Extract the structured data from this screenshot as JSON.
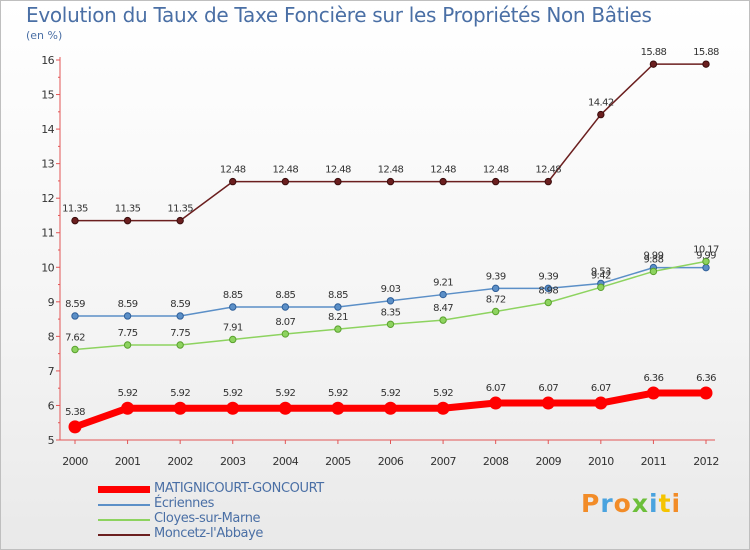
{
  "header": {
    "title": "Evolution du Taux de Taxe Foncière sur les Propriétés Non Bâties",
    "subtitle": "(en %)"
  },
  "brand": {
    "logo_text": "Proxiti"
  },
  "chart_data": {
    "type": "line",
    "title": "Evolution du Taux de Taxe Foncière sur les Propriétés Non Bâties",
    "ylabel": "(en %)",
    "xlabel": "",
    "x": [
      "2000",
      "2001",
      "2002",
      "2003",
      "2004",
      "2005",
      "2006",
      "2007",
      "2008",
      "2009",
      "2010",
      "2011",
      "2012"
    ],
    "ylim": [
      5,
      16
    ],
    "yticks": [
      5,
      6,
      7,
      8,
      9,
      10,
      11,
      12,
      13,
      14,
      15,
      16
    ],
    "legend_position": "bottom-left",
    "series": [
      {
        "name": "Moncetz-l'Abbaye",
        "color": "#6b1f1f",
        "values": [
          11.35,
          11.35,
          11.35,
          12.48,
          12.48,
          12.48,
          12.48,
          12.48,
          12.48,
          12.48,
          14.42,
          15.88,
          15.88
        ],
        "labels": [
          "11.35",
          "11.35",
          "11.35",
          "12.48",
          "12.48",
          "12.48",
          "12.48",
          "12.48",
          "12.48",
          "12.48",
          "14.42",
          "15.88",
          "15.88"
        ]
      },
      {
        "name": "Écriennes",
        "color": "#5b8fc7",
        "values": [
          8.59,
          8.59,
          8.59,
          8.85,
          8.85,
          8.85,
          9.03,
          9.21,
          9.39,
          9.39,
          9.53,
          9.99,
          9.99
        ],
        "labels": [
          "8.59",
          "8.59",
          "8.59",
          "8.85",
          "8.85",
          "8.85",
          "9.03",
          "9.21",
          "9.39",
          "9.39",
          "9.53",
          "9.99",
          "9.99"
        ]
      },
      {
        "name": "Cloyes-sur-Marne",
        "color": "#8dd35f",
        "values": [
          7.62,
          7.75,
          7.75,
          7.91,
          8.07,
          8.21,
          8.35,
          8.47,
          8.72,
          8.98,
          9.42,
          9.88,
          10.17
        ],
        "labels": [
          "7.62",
          "7.75",
          "7.75",
          "7.91",
          "8.07",
          "8.21",
          "8.35",
          "8.47",
          "8.72",
          "8.98",
          "9.42",
          "9.88",
          "10.17"
        ]
      },
      {
        "name": "MATIGNICOURT-GONCOURT",
        "color": "#ff0000",
        "values": [
          5.38,
          5.92,
          5.92,
          5.92,
          5.92,
          5.92,
          5.92,
          5.92,
          6.07,
          6.07,
          6.07,
          6.36,
          6.36
        ],
        "labels": [
          "5.38",
          "5.92",
          "5.92",
          "5.92",
          "5.92",
          "5.92",
          "5.92",
          "5.92",
          "6.07",
          "6.07",
          "6.07",
          "6.36",
          "6.36"
        ]
      }
    ],
    "legend": [
      "MATIGNICOURT-GONCOURT",
      "Écriennes",
      "Cloyes-sur-Marne",
      "Moncetz-l'Abbaye"
    ]
  }
}
